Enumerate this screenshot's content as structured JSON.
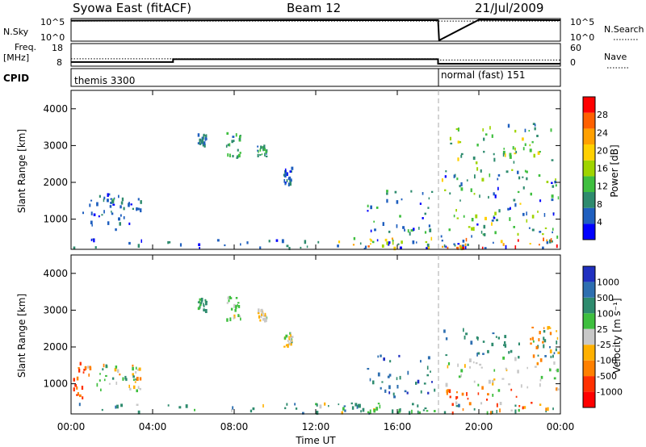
{
  "header": {
    "title_left": "Syowa East (fitACF)",
    "title_center": "Beam 12",
    "title_right": "21/Jul/2009"
  },
  "noise_panel": {
    "label_left": "N.Sky",
    "label_right": "N.Search",
    "left_ticks": [
      "10^5",
      "10^0"
    ],
    "right_ticks": [
      "10^5",
      "10^0"
    ]
  },
  "freq_panel": {
    "label_left_line1": "Freq.",
    "label_left_line2": "[MHz]",
    "label_right": "Nave",
    "left_ticks": [
      "18",
      "8"
    ],
    "right_ticks": [
      "60",
      "0"
    ]
  },
  "cpid_panel": {
    "label": "CPID",
    "mode_1": "themis 3300",
    "mode_2": "normal (fast) 151"
  },
  "power_panel": {
    "ylabel": "Slant Range [km]",
    "yticks": [
      "4000",
      "3000",
      "2000",
      "1000"
    ],
    "colorbar_label": "Power [dB]",
    "colorbar_ticks": [
      "28",
      "24",
      "20",
      "16",
      "12",
      "8",
      "4"
    ],
    "colors": [
      "#0000ff",
      "#1f5fbf",
      "#2e8b6e",
      "#3fbf3f",
      "#9fd400",
      "#ffd000",
      "#ffa000",
      "#ff6000",
      "#ff0000"
    ]
  },
  "velocity_panel": {
    "ylabel": "Slant Range [km]",
    "yticks": [
      "4000",
      "3000",
      "2000",
      "1000"
    ],
    "colorbar_label": "Velocity [m s⁻¹]",
    "colorbar_ticks": [
      "1000",
      "500",
      "100",
      "25",
      "-25",
      "-100",
      "-500",
      "-1000"
    ],
    "colors": [
      "#2030c0",
      "#2e6fb0",
      "#2e8b6e",
      "#3fbf3f",
      "#c8c8c8",
      "#ffb000",
      "#ff8000",
      "#ff3000",
      "#ff0000"
    ]
  },
  "xaxis": {
    "label": "Time UT",
    "ticks": [
      "00:00",
      "04:00",
      "08:00",
      "12:00",
      "16:00",
      "20:00",
      "00:00"
    ]
  },
  "chart_data": [
    {
      "type": "line",
      "name": "noise",
      "x_hours": [
        0,
        6,
        12,
        18,
        18.05,
        20,
        24
      ],
      "sky_log": [
        4.7,
        4.75,
        4.8,
        4.8,
        0,
        4.9,
        4.8
      ],
      "search_log": [
        4.6,
        4.6,
        4.6,
        4.6,
        4.6,
        4.6,
        4.6
      ]
    },
    {
      "type": "line",
      "name": "frequency",
      "x_hours": [
        0,
        5,
        5,
        18,
        18,
        24
      ],
      "freq_mhz": [
        10.3,
        10.3,
        12.2,
        12.2,
        9.1,
        9.1
      ],
      "nave": [
        27,
        27,
        27,
        27,
        22,
        22
      ]
    },
    {
      "type": "heatmap",
      "name": "power",
      "xlim_hours": [
        0,
        24
      ],
      "ylim_km": [
        180,
        4500
      ],
      "regions": [
        {
          "t": [
            0.2,
            3.4
          ],
          "r": [
            700,
            1700
          ],
          "v": [
            2,
            8
          ]
        },
        {
          "t": [
            1.4,
            3.4
          ],
          "r": [
            1150,
            1550
          ],
          "v": [
            4,
            12
          ]
        },
        {
          "t": [
            0,
            24
          ],
          "r": [
            190,
            450
          ],
          "v": [
            2,
            10
          ]
        },
        {
          "t": [
            6.2,
            6.6
          ],
          "r": [
            2950,
            3300
          ],
          "v": [
            4,
            10
          ]
        },
        {
          "t": [
            7.6,
            8.3
          ],
          "r": [
            2650,
            3350
          ],
          "v": [
            6,
            14
          ]
        },
        {
          "t": [
            9.1,
            9.6
          ],
          "r": [
            2700,
            3000
          ],
          "v": [
            6,
            14
          ]
        },
        {
          "t": [
            10.4,
            10.8
          ],
          "r": [
            1900,
            2400
          ],
          "v": [
            2,
            10
          ]
        },
        {
          "t": [
            12.8,
            17.8
          ],
          "r": [
            200,
            480
          ],
          "v": [
            10,
            26
          ]
        },
        {
          "t": [
            14.5,
            17.8
          ],
          "r": [
            600,
            1800
          ],
          "v": [
            2,
            12
          ]
        },
        {
          "t": [
            18.1,
            23.9
          ],
          "r": [
            200,
            470
          ],
          "v": [
            14,
            32
          ]
        },
        {
          "t": [
            18.1,
            23.9
          ],
          "r": [
            500,
            2400
          ],
          "v": [
            2,
            18
          ]
        },
        {
          "t": [
            18.5,
            23.6
          ],
          "r": [
            2500,
            3600
          ],
          "v": [
            6,
            20
          ]
        }
      ]
    },
    {
      "type": "heatmap",
      "name": "velocity",
      "xlim_hours": [
        0,
        24
      ],
      "ylim_km": [
        180,
        4500
      ],
      "regions": [
        {
          "t": [
            0.1,
            0.9
          ],
          "r": [
            600,
            1700
          ],
          "v": [
            -1000,
            -100
          ]
        },
        {
          "t": [
            0.2,
            3.4
          ],
          "r": [
            800,
            1500
          ],
          "v": [
            -50,
            50
          ]
        },
        {
          "t": [
            1.5,
            3.4
          ],
          "r": [
            1100,
            1500
          ],
          "v": [
            -150,
            150
          ]
        },
        {
          "t": [
            0,
            24
          ],
          "r": [
            190,
            450
          ],
          "v": [
            -120,
            600
          ]
        },
        {
          "t": [
            6.2,
            6.6
          ],
          "r": [
            2950,
            3300
          ],
          "v": [
            50,
            200
          ]
        },
        {
          "t": [
            7.6,
            8.3
          ],
          "r": [
            2650,
            3350
          ],
          "v": [
            -40,
            100
          ]
        },
        {
          "t": [
            9.1,
            9.6
          ],
          "r": [
            2700,
            3000
          ],
          "v": [
            -40,
            40
          ]
        },
        {
          "t": [
            10.4,
            10.8
          ],
          "r": [
            1900,
            2400
          ],
          "v": [
            -100,
            150
          ]
        },
        {
          "t": [
            12.8,
            17.8
          ],
          "r": [
            200,
            480
          ],
          "v": [
            60,
            200
          ]
        },
        {
          "t": [
            14.5,
            17.8
          ],
          "r": [
            600,
            1800
          ],
          "v": [
            200,
            1200
          ]
        },
        {
          "t": [
            18.1,
            23.9
          ],
          "r": [
            900,
            1700
          ],
          "v": [
            -40,
            40
          ]
        },
        {
          "t": [
            18.1,
            23.9
          ],
          "r": [
            1700,
            2500
          ],
          "v": [
            80,
            600
          ]
        },
        {
          "t": [
            18.1,
            23.9
          ],
          "r": [
            200,
            900
          ],
          "v": [
            -700,
            150
          ]
        },
        {
          "t": [
            22.5,
            23.9
          ],
          "r": [
            1500,
            2600
          ],
          "v": [
            -200,
            -50
          ]
        }
      ]
    }
  ]
}
